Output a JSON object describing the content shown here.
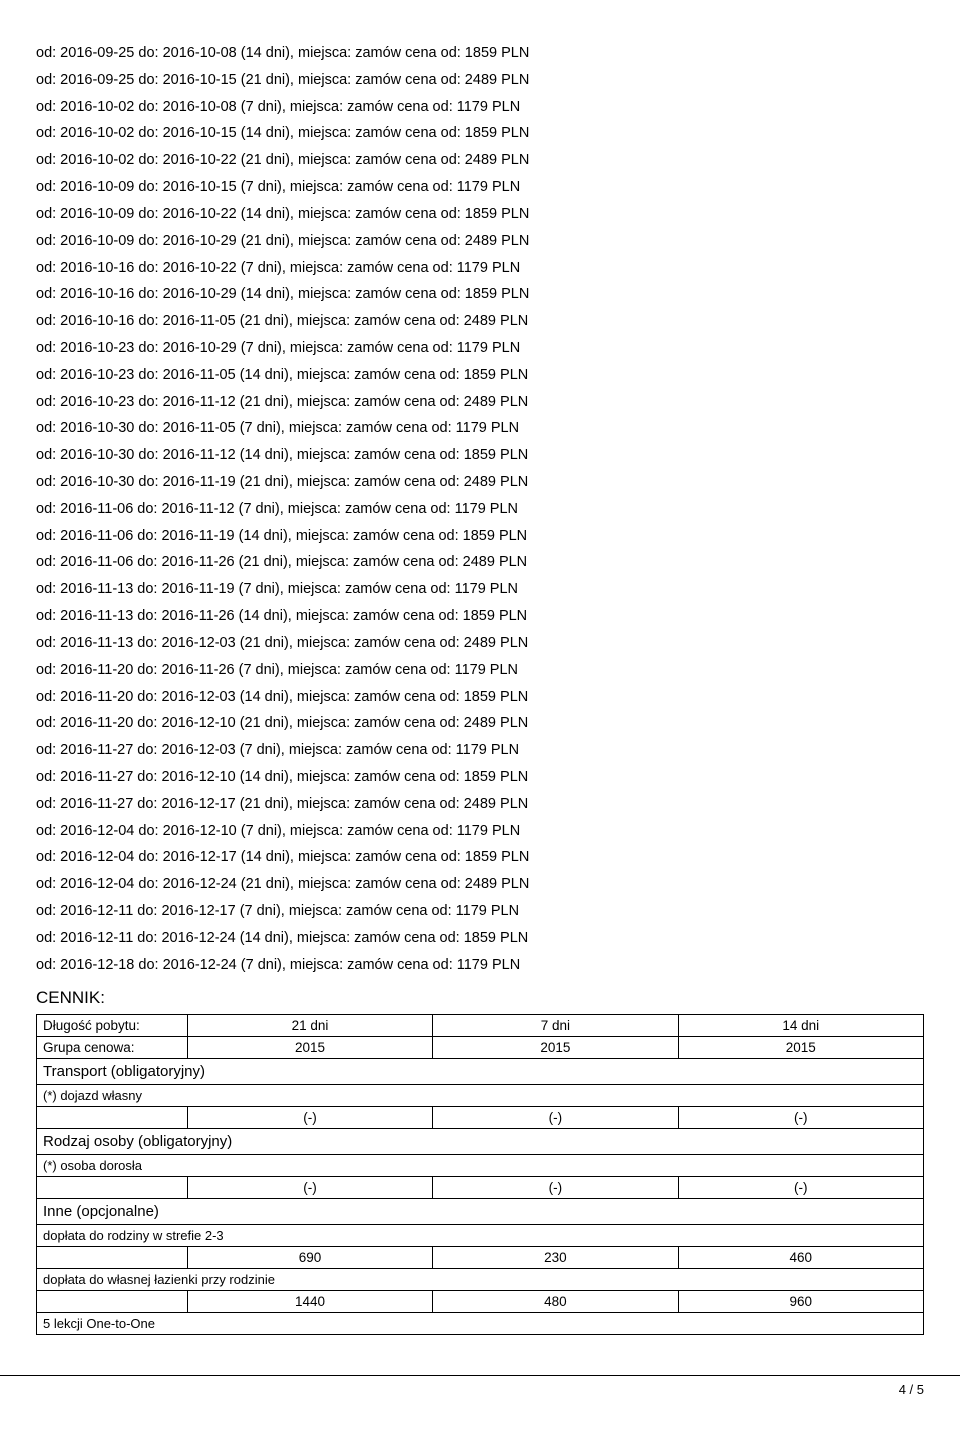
{
  "offers": [
    {
      "from": "2016-09-25",
      "to": "2016-10-08",
      "days": 14,
      "price": 1859
    },
    {
      "from": "2016-09-25",
      "to": "2016-10-15",
      "days": 21,
      "price": 2489
    },
    {
      "from": "2016-10-02",
      "to": "2016-10-08",
      "days": 7,
      "price": 1179
    },
    {
      "from": "2016-10-02",
      "to": "2016-10-15",
      "days": 14,
      "price": 1859
    },
    {
      "from": "2016-10-02",
      "to": "2016-10-22",
      "days": 21,
      "price": 2489
    },
    {
      "from": "2016-10-09",
      "to": "2016-10-15",
      "days": 7,
      "price": 1179
    },
    {
      "from": "2016-10-09",
      "to": "2016-10-22",
      "days": 14,
      "price": 1859
    },
    {
      "from": "2016-10-09",
      "to": "2016-10-29",
      "days": 21,
      "price": 2489
    },
    {
      "from": "2016-10-16",
      "to": "2016-10-22",
      "days": 7,
      "price": 1179
    },
    {
      "from": "2016-10-16",
      "to": "2016-10-29",
      "days": 14,
      "price": 1859
    },
    {
      "from": "2016-10-16",
      "to": "2016-11-05",
      "days": 21,
      "price": 2489
    },
    {
      "from": "2016-10-23",
      "to": "2016-10-29",
      "days": 7,
      "price": 1179
    },
    {
      "from": "2016-10-23",
      "to": "2016-11-05",
      "days": 14,
      "price": 1859
    },
    {
      "from": "2016-10-23",
      "to": "2016-11-12",
      "days": 21,
      "price": 2489
    },
    {
      "from": "2016-10-30",
      "to": "2016-11-05",
      "days": 7,
      "price": 1179
    },
    {
      "from": "2016-10-30",
      "to": "2016-11-12",
      "days": 14,
      "price": 1859
    },
    {
      "from": "2016-10-30",
      "to": "2016-11-19",
      "days": 21,
      "price": 2489
    },
    {
      "from": "2016-11-06",
      "to": "2016-11-12",
      "days": 7,
      "price": 1179
    },
    {
      "from": "2016-11-06",
      "to": "2016-11-19",
      "days": 14,
      "price": 1859
    },
    {
      "from": "2016-11-06",
      "to": "2016-11-26",
      "days": 21,
      "price": 2489
    },
    {
      "from": "2016-11-13",
      "to": "2016-11-19",
      "days": 7,
      "price": 1179
    },
    {
      "from": "2016-11-13",
      "to": "2016-11-26",
      "days": 14,
      "price": 1859
    },
    {
      "from": "2016-11-13",
      "to": "2016-12-03",
      "days": 21,
      "price": 2489
    },
    {
      "from": "2016-11-20",
      "to": "2016-11-26",
      "days": 7,
      "price": 1179
    },
    {
      "from": "2016-11-20",
      "to": "2016-12-03",
      "days": 14,
      "price": 1859
    },
    {
      "from": "2016-11-20",
      "to": "2016-12-10",
      "days": 21,
      "price": 2489
    },
    {
      "from": "2016-11-27",
      "to": "2016-12-03",
      "days": 7,
      "price": 1179
    },
    {
      "from": "2016-11-27",
      "to": "2016-12-10",
      "days": 14,
      "price": 1859
    },
    {
      "from": "2016-11-27",
      "to": "2016-12-17",
      "days": 21,
      "price": 2489
    },
    {
      "from": "2016-12-04",
      "to": "2016-12-10",
      "days": 7,
      "price": 1179
    },
    {
      "from": "2016-12-04",
      "to": "2016-12-17",
      "days": 14,
      "price": 1859
    },
    {
      "from": "2016-12-04",
      "to": "2016-12-24",
      "days": 21,
      "price": 2489
    },
    {
      "from": "2016-12-11",
      "to": "2016-12-17",
      "days": 7,
      "price": 1179
    },
    {
      "from": "2016-12-11",
      "to": "2016-12-24",
      "days": 14,
      "price": 1859
    },
    {
      "from": "2016-12-18",
      "to": "2016-12-24",
      "days": 7,
      "price": 1179
    }
  ],
  "offer_template": {
    "prefix_od": "od: ",
    "prefix_do": " do: ",
    "days_suffix": " dni",
    "miejsca_label": ", miejsca: zamów cena od: ",
    "currency": " PLN"
  },
  "cennik_heading": "CENNIK:",
  "table": {
    "row_dlugosc_label": "Długość pobytu:",
    "row_dlugosc_values": [
      "21 dni",
      "7 dni",
      "14 dni"
    ],
    "row_grupa_label": "Grupa cenowa:",
    "row_grupa_values": [
      "2015",
      "2015",
      "2015"
    ],
    "section_transport": "Transport (obligatoryjny)",
    "sub_dojazd": "(*) dojazd własny",
    "dash_values": [
      "(-)",
      "(-)",
      "(-)"
    ],
    "section_rodzaj": " Rodzaj osoby (obligatoryjny)",
    "sub_osoba": "(*) osoba dorosła",
    "section_inne": " Inne (opcjonalne)",
    "sub_doplata_strefa": " dopłata do rodziny w strefie 2-3",
    "doplata_strefa_values": [
      "690",
      "230",
      "460"
    ],
    "sub_doplata_lazienka": " dopłata do własnej łazienki przy rodzinie",
    "doplata_lazienka_values": [
      "1440",
      "480",
      "960"
    ],
    "sub_lekcji": " 5 lekcji One-to-One"
  },
  "footer": {
    "page": "4 / 5"
  }
}
